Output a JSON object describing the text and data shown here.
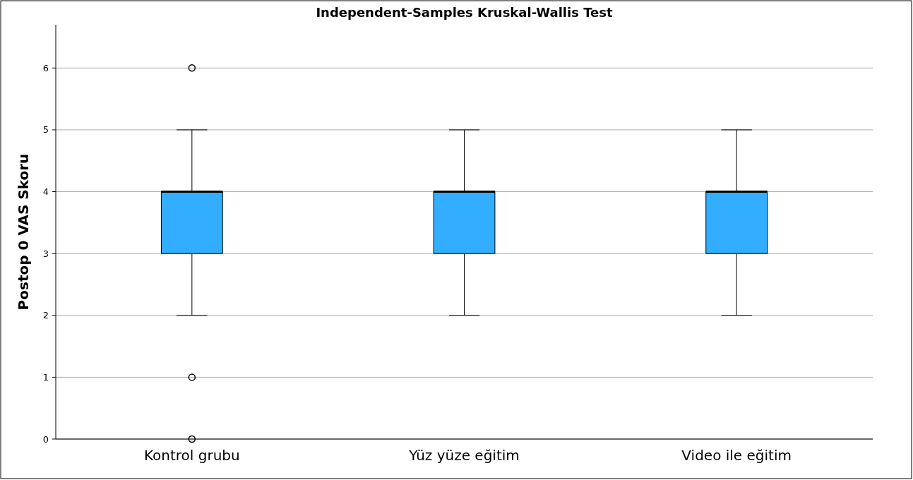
{
  "chart_data": {
    "type": "box",
    "title": "Independent-Samples Kruskal-Wallis Test",
    "ylabel": "Postop 0 VAS Skoru",
    "categories": [
      "Kontrol grubu",
      "Yüz yüze eğitim",
      "Video ile eğitim"
    ],
    "boxes": [
      {
        "low": 2,
        "q1": 3,
        "median": 4,
        "q3": 4,
        "high": 5,
        "outliers": [
          6,
          1,
          0
        ]
      },
      {
        "low": 2,
        "q1": 3,
        "median": 4,
        "q3": 4,
        "high": 5
      },
      {
        "low": 2,
        "q1": 3,
        "median": 4,
        "q3": 4,
        "high": 5
      }
    ],
    "color": "#33adff",
    "ylim": [
      0,
      6.7
    ],
    "yticks": [
      0,
      1,
      2,
      3,
      4,
      5,
      6
    ],
    "grid": "y"
  }
}
